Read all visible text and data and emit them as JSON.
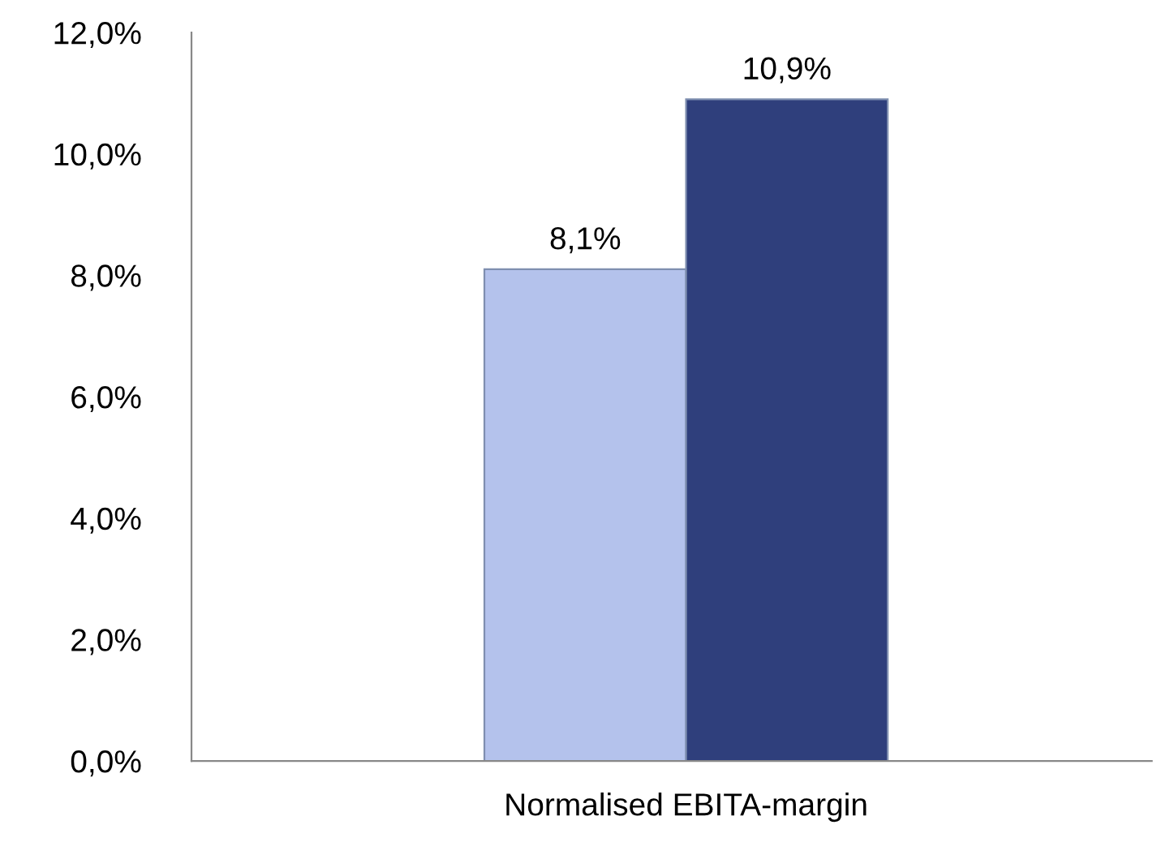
{
  "chart_data": {
    "type": "bar",
    "categories": [
      "Normalised EBITA-margin"
    ],
    "series": [
      {
        "color": "#b4c2ec",
        "values": [
          8.1
        ],
        "value_labels": [
          "8,1%"
        ]
      },
      {
        "color": "#2f3f7c",
        "values": [
          10.9
        ],
        "value_labels": [
          "10,9%"
        ]
      }
    ],
    "ylim": [
      0,
      12
    ],
    "yticks": [
      {
        "value": 0,
        "label": "0,0%"
      },
      {
        "value": 2,
        "label": "2,0%"
      },
      {
        "value": 4,
        "label": "4,0%"
      },
      {
        "value": 6,
        "label": "6,0%"
      },
      {
        "value": 8,
        "label": "8,0%"
      },
      {
        "value": 10,
        "label": "10,0%"
      },
      {
        "value": 12,
        "label": "12,0%"
      }
    ],
    "grid": false,
    "legend": false
  }
}
